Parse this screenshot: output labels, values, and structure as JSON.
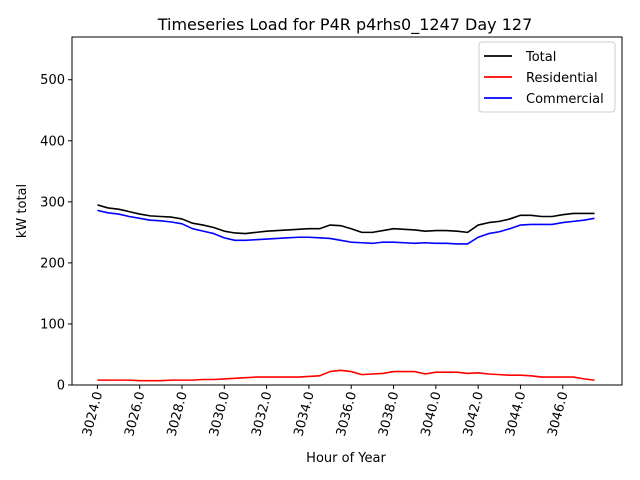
{
  "chart_data": {
    "type": "line",
    "title": "Timeseries Load for P4R p4rhs0_1247  Day 127",
    "xlabel": "Hour of Year",
    "ylabel": "kW total",
    "xlim": [
      3022.8,
      3048.8
    ],
    "ylim": [
      0,
      570
    ],
    "xticks": [
      3024,
      3026,
      3028,
      3030,
      3032,
      3034,
      3036,
      3038,
      3040,
      3042,
      3044,
      3046
    ],
    "xtick_labels": [
      "3024.0",
      "3026.0",
      "3028.0",
      "3030.0",
      "3032.0",
      "3034.0",
      "3036.0",
      "3038.0",
      "3040.0",
      "3042.0",
      "3044.0",
      "3046.0"
    ],
    "yticks": [
      0,
      100,
      200,
      300,
      400,
      500
    ],
    "ytick_labels": [
      "0",
      "100",
      "200",
      "300",
      "400",
      "500"
    ],
    "legend_position": "top-right",
    "x": [
      3024.0,
      3024.5,
      3025.0,
      3025.5,
      3026.0,
      3026.5,
      3027.0,
      3027.5,
      3028.0,
      3028.5,
      3029.0,
      3029.5,
      3030.0,
      3030.5,
      3031.0,
      3031.5,
      3032.0,
      3032.5,
      3033.0,
      3033.5,
      3034.0,
      3034.5,
      3035.0,
      3035.5,
      3036.0,
      3036.5,
      3037.0,
      3037.5,
      3038.0,
      3038.5,
      3039.0,
      3039.5,
      3040.0,
      3040.5,
      3041.0,
      3041.5,
      3042.0,
      3042.5,
      3043.0,
      3043.5,
      3044.0,
      3044.5,
      3045.0,
      3045.5,
      3046.0,
      3046.5,
      3047.0,
      3047.5
    ],
    "series": [
      {
        "name": "Total",
        "color": "#000000",
        "values": [
          295,
          290,
          288,
          284,
          280,
          277,
          276,
          275,
          272,
          265,
          262,
          258,
          252,
          249,
          248,
          250,
          252,
          253,
          254,
          255,
          256,
          256,
          262,
          261,
          256,
          250,
          250,
          253,
          256,
          255,
          254,
          252,
          253,
          253,
          252,
          250,
          262,
          266,
          268,
          272,
          278,
          278,
          276,
          276,
          279,
          281,
          281,
          281
        ]
      },
      {
        "name": "Residential",
        "color": "#ff0000",
        "values": [
          8,
          8,
          8,
          8,
          7,
          7,
          7,
          8,
          8,
          8,
          9,
          9,
          10,
          11,
          12,
          13,
          13,
          13,
          13,
          13,
          14,
          15,
          22,
          24,
          22,
          17,
          18,
          19,
          22,
          22,
          22,
          18,
          21,
          21,
          21,
          19,
          20,
          18,
          17,
          16,
          16,
          15,
          13,
          13,
          13,
          13,
          10,
          8
        ]
      },
      {
        "name": "Commercial",
        "color": "#0000ff",
        "values": [
          286,
          282,
          280,
          276,
          273,
          270,
          269,
          267,
          264,
          256,
          252,
          248,
          241,
          237,
          237,
          238,
          239,
          240,
          241,
          242,
          242,
          241,
          240,
          237,
          234,
          233,
          232,
          234,
          234,
          233,
          232,
          233,
          232,
          232,
          231,
          231,
          242,
          248,
          251,
          256,
          262,
          263,
          263,
          263,
          266,
          268,
          270,
          273
        ]
      }
    ]
  }
}
